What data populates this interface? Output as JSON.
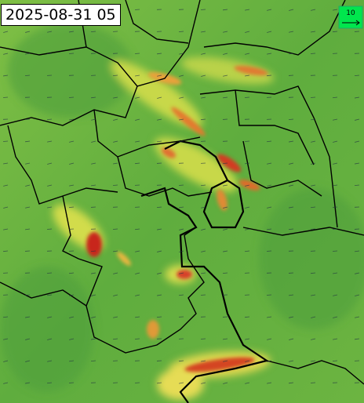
{
  "timestamp": "2025-08-31 05",
  "legend": {
    "label": "10"
  }
}
